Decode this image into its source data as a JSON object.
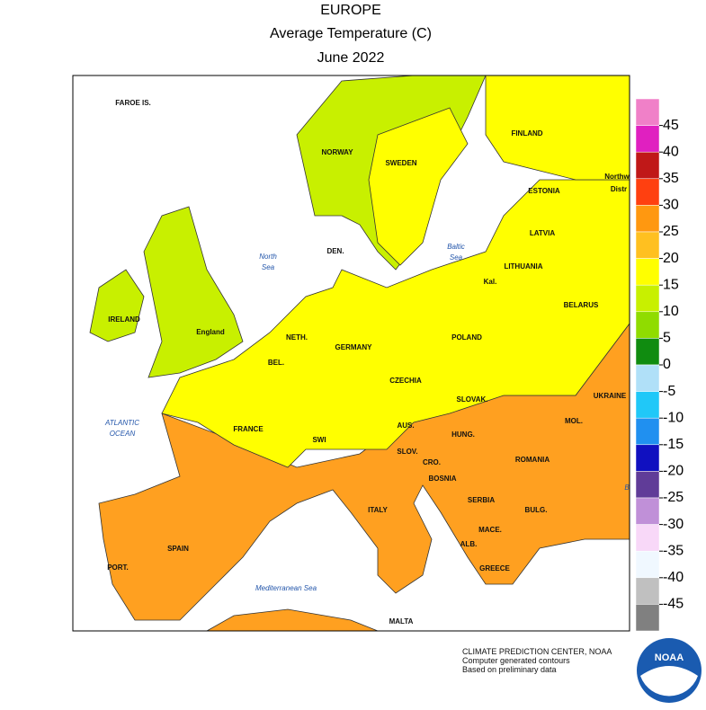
{
  "header": {
    "title": "EUROPE",
    "subtitle": "Average Temperature (C)",
    "date": "June 2022"
  },
  "map": {
    "country_labels": [
      "FAROE IS.",
      "NORWAY",
      "SWEDEN",
      "FINLAND",
      "ESTONIA",
      "Northw",
      "Distr",
      "LATVIA",
      "LITHUANIA",
      "BELARUS",
      "DEN.",
      "Kal.",
      "IRELAND",
      "England",
      "NETH.",
      "GERMANY",
      "POLAND",
      "BEL.",
      "CZECHIA",
      "SLOVAK.",
      "UKRAINE",
      "FRANCE",
      "AUS.",
      "HUNG.",
      "MOL.",
      "SWI",
      "SLOV.",
      "CRO.",
      "ROMANIA",
      "BOSNIA",
      "SERBIA",
      "ITALY",
      "BULG.",
      "MACE.",
      "SPAIN",
      "ALB.",
      "PORT.",
      "GREECE",
      "MALTA"
    ],
    "sea_labels": [
      [
        "North",
        "Sea"
      ],
      [
        "Baltic",
        "Sea"
      ],
      [
        "ATLANTIC",
        "OCEAN"
      ],
      [
        "Mediterranean Sea"
      ],
      [
        "B"
      ]
    ]
  },
  "legend": {
    "colors": [
      "#f080c8",
      "#e020c0",
      "#c01818",
      "#ff4010",
      "#ff9810",
      "#ffc020",
      "#ffff00",
      "#c8f000",
      "#90dc00",
      "#108c10",
      "#b0e0f8",
      "#20c8f8",
      "#2090f0",
      "#1010c0",
      "#603c98",
      "#c090d8",
      "#f8d8f8",
      "#f0f8ff",
      "#c0c0c0",
      "#808080"
    ],
    "ticks": [
      45,
      40,
      35,
      30,
      25,
      20,
      15,
      10,
      5,
      0,
      -5,
      -10,
      -15,
      -20,
      -25,
      -30,
      -35,
      -40,
      -45
    ]
  },
  "credits": [
    "CLIMATE PREDICTION CENTER, NOAA",
    "Computer generated contours",
    "Based on preliminary data"
  ],
  "logo": "NOAA"
}
